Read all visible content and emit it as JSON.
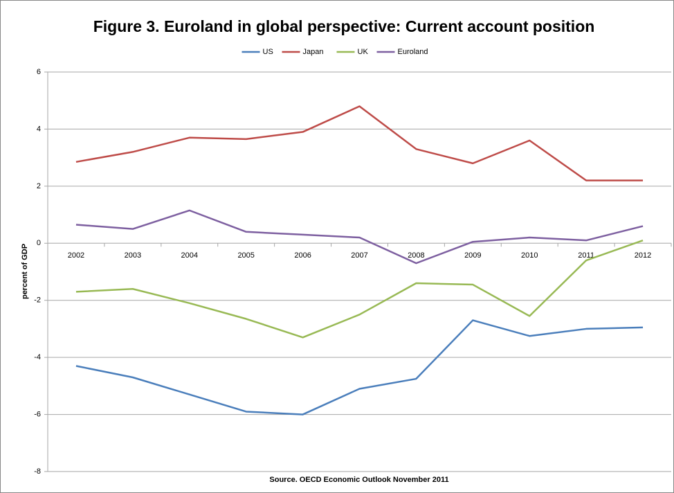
{
  "chart_data": {
    "type": "line",
    "title": "Figure 3. Euroland in global perspective: Current account position",
    "y_label": "percent of GDP",
    "source": "Source. OECD Economic Outlook November 2011",
    "categories": [
      "2002",
      "2003",
      "2004",
      "2005",
      "2006",
      "2007",
      "2008",
      "2009",
      "2010",
      "2011",
      "2012"
    ],
    "series": [
      {
        "name": "US",
        "color": "#4a7ebb",
        "values": [
          -4.3,
          -4.7,
          -5.3,
          -5.9,
          -6.0,
          -5.1,
          -4.75,
          -2.7,
          -3.25,
          -3.0,
          -2.95
        ]
      },
      {
        "name": "Japan",
        "color": "#be4b48",
        "values": [
          2.85,
          3.2,
          3.7,
          3.65,
          3.9,
          4.8,
          3.3,
          2.8,
          3.6,
          2.2,
          2.2
        ]
      },
      {
        "name": "UK",
        "color": "#98b954",
        "values": [
          -1.7,
          -1.6,
          -2.1,
          -2.65,
          -3.3,
          -2.5,
          -1.4,
          -1.45,
          -2.55,
          -0.6,
          0.1
        ]
      },
      {
        "name": "Euroland",
        "color": "#7d5fa0",
        "values": [
          0.65,
          0.5,
          1.15,
          0.4,
          0.3,
          0.2,
          -0.7,
          0.05,
          0.2,
          0.1,
          0.6
        ]
      }
    ],
    "ylim": [
      -8,
      6
    ],
    "yticks": [
      -8,
      -6,
      -4,
      -2,
      0,
      2,
      4,
      6
    ],
    "grid": true,
    "legend": "top"
  }
}
